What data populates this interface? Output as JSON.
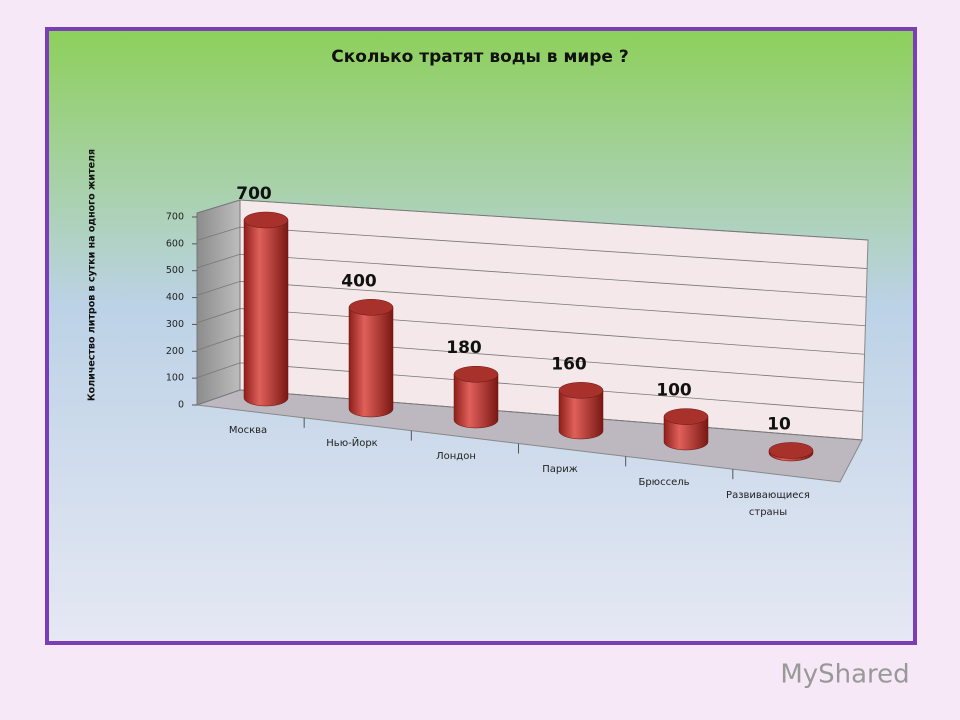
{
  "chart_data": {
    "type": "bar3d",
    "title": "Сколько тратят воды  в мире ?",
    "y_label": "Количество  литров в сутки на одного жителя",
    "categories": [
      "Москва",
      "Нью-Йорк",
      "Лондон",
      "Париж",
      "Брюссель",
      "Развивающиеся страны"
    ],
    "values": [
      700,
      400,
      180,
      160,
      100,
      10
    ],
    "color": "#c0392b",
    "ylim": [
      0,
      700
    ],
    "yticks": [
      0,
      100,
      200,
      300,
      400,
      500,
      600,
      700
    ],
    "grid": true
  },
  "watermark": "MyShared"
}
